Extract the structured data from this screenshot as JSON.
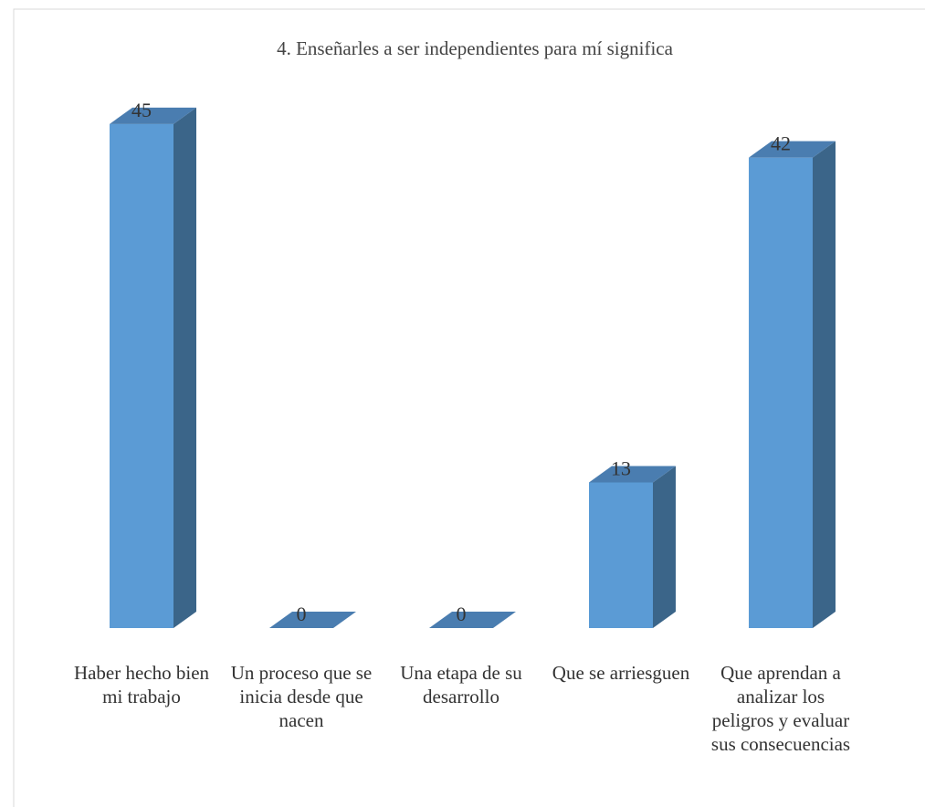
{
  "chart_data": {
    "type": "bar3d",
    "title": "4. Enseñarles a ser independientes para mí significa",
    "categories": [
      "Haber hecho bien mi trabajo",
      "Un proceso que se inicia desde que nacen",
      "Una etapa de su desarrollo",
      "Que se arriesguen",
      "Que aprendan a analizar los peligros y evaluar sus consecuencias"
    ],
    "values": [
      45,
      0,
      0,
      13,
      42
    ],
    "color": "#5b9bd5",
    "side_color": "#3b6589",
    "top_color": "#4a7db0"
  }
}
